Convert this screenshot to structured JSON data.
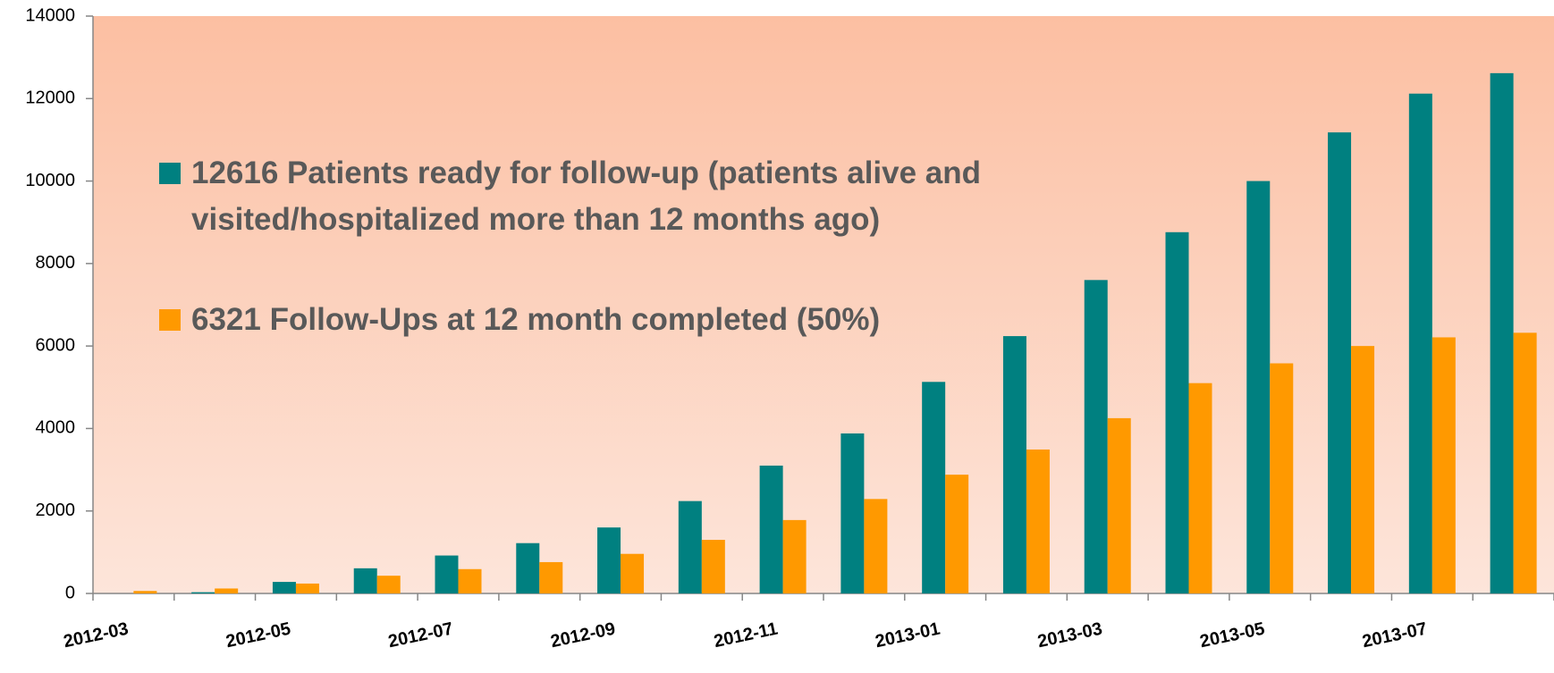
{
  "chart_data": {
    "type": "bar",
    "categories": [
      "2012-03",
      null,
      "2012-05",
      null,
      "2012-07",
      null,
      "2012-09",
      null,
      "2012-11",
      null,
      "2013-01",
      null,
      "2013-03",
      null,
      "2013-05",
      null,
      "2013-07",
      null
    ],
    "series": [
      {
        "name": "12616 Patients ready for follow-up (patients alive and visited/hospitalized more than 12 months ago)",
        "color": "#008080",
        "values": [
          0,
          30,
          280,
          610,
          920,
          1220,
          1600,
          2240,
          3100,
          3880,
          5130,
          6240,
          7600,
          8760,
          10000,
          11180,
          12120,
          12616
        ]
      },
      {
        "name": "6321 Follow-Ups at 12 month completed (50%)",
        "color": "#ff9900",
        "values": [
          60,
          120,
          240,
          430,
          590,
          760,
          960,
          1300,
          1780,
          2290,
          2880,
          3490,
          4250,
          5100,
          5580,
          6000,
          6210,
          6321
        ]
      }
    ],
    "ylim": [
      0,
      14000
    ],
    "yticks": [
      0,
      2000,
      4000,
      6000,
      8000,
      10000,
      12000,
      14000
    ],
    "grid": false
  }
}
